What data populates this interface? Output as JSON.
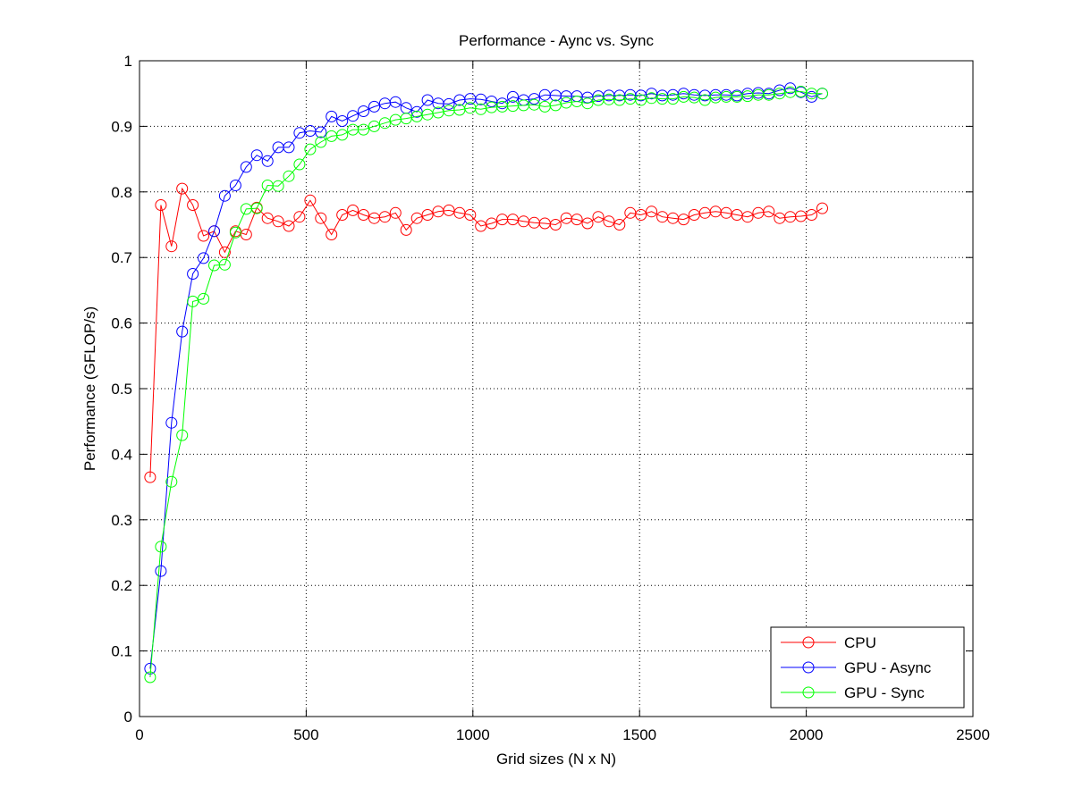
{
  "chart_data": {
    "type": "line",
    "title": "Performance - Aync vs. Sync",
    "xlabel": "Grid sizes (N x N)",
    "ylabel": "Performance (GFLOP/s)",
    "xlim": [
      0,
      2500
    ],
    "ylim": [
      0,
      1
    ],
    "xticks": [
      "0",
      "500",
      "1000",
      "1500",
      "2000",
      "2500"
    ],
    "yticks": [
      "0",
      "0.1",
      "0.2",
      "0.3",
      "0.4",
      "0.5",
      "0.6",
      "0.7",
      "0.8",
      "0.9",
      "1"
    ],
    "grid": true,
    "legend_position": "bottom-right",
    "marker": "circle-open",
    "x": [
      32,
      64,
      96,
      128,
      160,
      192,
      224,
      256,
      288,
      320,
      352,
      384,
      416,
      448,
      480,
      512,
      544,
      576,
      608,
      640,
      672,
      704,
      736,
      768,
      800,
      832,
      864,
      896,
      928,
      960,
      992,
      1024,
      1056,
      1088,
      1120,
      1152,
      1184,
      1216,
      1248,
      1280,
      1312,
      1344,
      1376,
      1408,
      1440,
      1472,
      1504,
      1536,
      1568,
      1600,
      1632,
      1664,
      1696,
      1728,
      1760,
      1792,
      1824,
      1856,
      1888,
      1920,
      1952,
      1984,
      2016,
      2048
    ],
    "series": [
      {
        "name": "CPU",
        "color": "#ff0000",
        "values": [
          0.365,
          0.78,
          0.717,
          0.805,
          0.78,
          0.733,
          0.74,
          0.708,
          0.74,
          0.735,
          0.776,
          0.76,
          0.755,
          0.748,
          0.762,
          0.787,
          0.76,
          0.735,
          0.765,
          0.772,
          0.765,
          0.76,
          0.762,
          0.768,
          0.742,
          0.76,
          0.765,
          0.77,
          0.772,
          0.768,
          0.765,
          0.748,
          0.752,
          0.758,
          0.758,
          0.755,
          0.753,
          0.752,
          0.75,
          0.76,
          0.758,
          0.752,
          0.762,
          0.755,
          0.75,
          0.768,
          0.765,
          0.77,
          0.762,
          0.76,
          0.758,
          0.765,
          0.768,
          0.77,
          0.768,
          0.765,
          0.762,
          0.768,
          0.77,
          0.76,
          0.762,
          0.763,
          0.765,
          0.775
        ]
      },
      {
        "name": "GPU - Async",
        "color": "#0000ff",
        "values": [
          0.073,
          0.222,
          0.448,
          0.587,
          0.675,
          0.699,
          0.74,
          0.794,
          0.81,
          0.838,
          0.856,
          0.847,
          0.868,
          0.868,
          0.89,
          0.893,
          0.891,
          0.915,
          0.908,
          0.916,
          0.923,
          0.93,
          0.935,
          0.937,
          0.928,
          0.922,
          0.94,
          0.935,
          0.934,
          0.94,
          0.942,
          0.941,
          0.938,
          0.935,
          0.945,
          0.94,
          0.942,
          0.948,
          0.947,
          0.946,
          0.946,
          0.944,
          0.946,
          0.947,
          0.947,
          0.948,
          0.947,
          0.95,
          0.947,
          0.948,
          0.95,
          0.948,
          0.947,
          0.948,
          0.948,
          0.947,
          0.95,
          0.951,
          0.95,
          0.955,
          0.958,
          0.952,
          0.945,
          0.95
        ]
      },
      {
        "name": "GPU - Sync",
        "color": "#00ff00",
        "values": [
          0.06,
          0.259,
          0.358,
          0.429,
          0.633,
          0.637,
          0.688,
          0.689,
          0.738,
          0.774,
          0.775,
          0.81,
          0.809,
          0.824,
          0.842,
          0.865,
          0.876,
          0.885,
          0.887,
          0.895,
          0.895,
          0.9,
          0.905,
          0.91,
          0.912,
          0.915,
          0.918,
          0.921,
          0.924,
          0.925,
          0.928,
          0.926,
          0.929,
          0.93,
          0.931,
          0.932,
          0.933,
          0.93,
          0.932,
          0.936,
          0.938,
          0.935,
          0.94,
          0.941,
          0.94,
          0.942,
          0.94,
          0.943,
          0.942,
          0.942,
          0.945,
          0.944,
          0.94,
          0.944,
          0.945,
          0.945,
          0.946,
          0.948,
          0.948,
          0.95,
          0.952,
          0.953,
          0.95,
          0.95
        ]
      }
    ]
  }
}
